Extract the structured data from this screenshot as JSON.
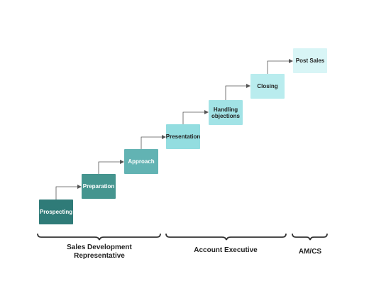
{
  "steps": [
    {
      "label": "Prospecting"
    },
    {
      "label": "Preparation"
    },
    {
      "label": "Approach"
    },
    {
      "label": "Presentation"
    },
    {
      "label": "Handling objections"
    },
    {
      "label": "Closing"
    },
    {
      "label": "Post Sales"
    }
  ],
  "roles": [
    {
      "label_line1": "Sales Development",
      "label_line2": "Representative"
    },
    {
      "label_line1": "Account Executive"
    },
    {
      "label_line1": "AM/CS"
    }
  ],
  "colors": {
    "connector": "#555555",
    "brace": "#333333"
  }
}
